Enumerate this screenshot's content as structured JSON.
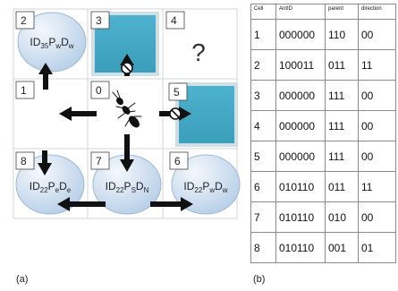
{
  "caption_a": "(a)",
  "caption_b": "(b)",
  "grid": {
    "cells": [
      {
        "id": "0",
        "label": "0"
      },
      {
        "id": "1",
        "label": "1"
      },
      {
        "id": "2",
        "label": "2"
      },
      {
        "id": "3",
        "label": "3"
      },
      {
        "id": "4",
        "label": "4"
      },
      {
        "id": "5",
        "label": "5"
      },
      {
        "id": "6",
        "label": "6"
      },
      {
        "id": "7",
        "label": "7"
      },
      {
        "id": "8",
        "label": "8"
      }
    ],
    "unknown_mark": "?"
  },
  "nodes": {
    "n2": {
      "base": "ID",
      "sub1": "35",
      "m1": "P",
      "sub2": "w",
      "m2": "D",
      "sub3": "w"
    },
    "n8": {
      "base": "ID",
      "sub1": "22",
      "m1": "P",
      "sub2": "e",
      "m2": "D",
      "sub3": "e"
    },
    "n7": {
      "base": "ID",
      "sub1": "22",
      "m1": "P",
      "sub2": "S",
      "m2": "D",
      "sub3": "N"
    },
    "n6": {
      "base": "ID",
      "sub1": "22",
      "m1": "P",
      "sub2": "w",
      "m2": "D",
      "sub3": "w"
    }
  },
  "colors": {
    "obstacle": "#44a9c6",
    "bubble_light": "#eef4fb",
    "bubble_dark": "#b7cfe8",
    "arrow": "#111111"
  },
  "table": {
    "headers": [
      "Cell",
      "AntID",
      "parent",
      "direction"
    ],
    "rows": [
      [
        "1",
        "000000",
        "110",
        "00"
      ],
      [
        "2",
        "100011",
        "011",
        "11"
      ],
      [
        "3",
        "000000",
        "111",
        "00"
      ],
      [
        "4",
        "000000",
        "111",
        "00"
      ],
      [
        "5",
        "000000",
        "111",
        "00"
      ],
      [
        "6",
        "010110",
        "011",
        "11"
      ],
      [
        "7",
        "010110",
        "010",
        "00"
      ],
      [
        "8",
        "010110",
        "001",
        "01"
      ]
    ]
  }
}
